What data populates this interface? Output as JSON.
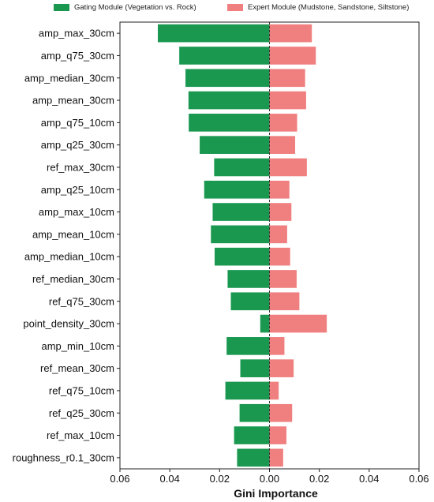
{
  "chart_data": {
    "type": "bar",
    "orientation": "horizontal",
    "xlabel": "Gini Importance",
    "ylabel": "",
    "xlim": [
      -0.06,
      0.06
    ],
    "xticks": [
      -0.06,
      -0.04,
      -0.02,
      0.0,
      0.02,
      0.04,
      0.06
    ],
    "xtick_labels": [
      "0.06",
      "0.04",
      "0.02",
      "0.00",
      "0.02",
      "0.04",
      "0.06"
    ],
    "grid": false,
    "legend_position": "top",
    "reference_line": 0.0,
    "categories": [
      "amp_max_30cm",
      "amp_q75_30cm",
      "amp_median_30cm",
      "amp_mean_30cm",
      "amp_q75_10cm",
      "amp_q25_30cm",
      "ref_max_30cm",
      "amp_q25_10cm",
      "amp_max_10cm",
      "amp_mean_10cm",
      "amp_median_10cm",
      "ref_median_30cm",
      "ref_q75_30cm",
      "point_density_30cm",
      "amp_min_10cm",
      "ref_mean_30cm",
      "ref_q75_10cm",
      "ref_q25_30cm",
      "ref_max_10cm",
      "roughness_r0.1_30cm"
    ],
    "series": [
      {
        "name": "Gating Module (Vegetation vs. Rock)",
        "color": "#1a9850",
        "direction": "left",
        "values": [
          0.0448,
          0.0362,
          0.0337,
          0.0325,
          0.0324,
          0.028,
          0.0222,
          0.0262,
          0.0228,
          0.0235,
          0.022,
          0.0168,
          0.0155,
          0.0037,
          0.0172,
          0.0117,
          0.0177,
          0.012,
          0.0142,
          0.013
        ]
      },
      {
        "name": "Expert Module (Mudstone, Sandstone, Siltstone)",
        "color": "#f08080",
        "direction": "right",
        "values": [
          0.017,
          0.0186,
          0.0143,
          0.0147,
          0.0111,
          0.0103,
          0.015,
          0.008,
          0.0088,
          0.0071,
          0.0083,
          0.0109,
          0.012,
          0.023,
          0.006,
          0.0097,
          0.0037,
          0.0091,
          0.0068,
          0.0055
        ]
      }
    ]
  }
}
